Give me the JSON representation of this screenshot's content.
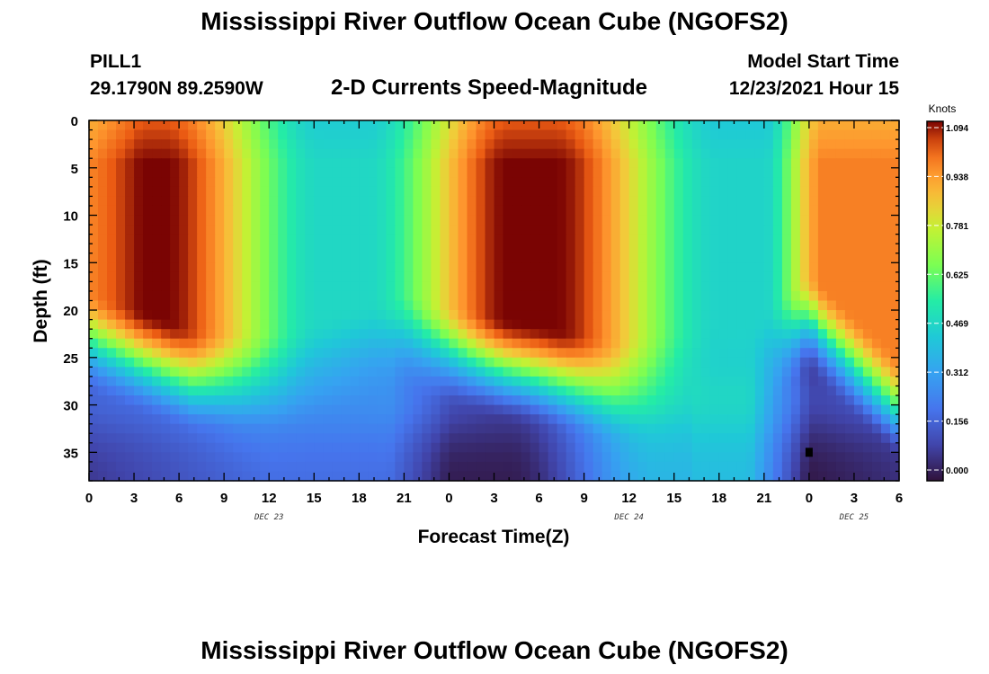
{
  "title": "Mississippi River Outflow Ocean Cube (NGOFS2)",
  "station": {
    "name": "PILL1",
    "coords": "29.1790N  89.2590W"
  },
  "model": {
    "start_label": "Model Start Time",
    "start_value": "12/23/2021 Hour 15"
  },
  "colors": {
    "colormap": "turbo",
    "missing_cell": "#000000"
  },
  "chart_data": {
    "type": "heatmap",
    "title": "2-D Currents Speed-Magnitude",
    "subtitle": "",
    "xlabel": "Forecast Time(Z)",
    "ylabel": "Depth (ft)",
    "x_ticks": [
      "0",
      "3",
      "6",
      "9",
      "12",
      "15",
      "18",
      "21",
      "0",
      "3",
      "6",
      "9",
      "12",
      "15",
      "18",
      "21",
      "0",
      "3",
      "6"
    ],
    "x_hours": [
      0,
      54
    ],
    "date_labels": [
      {
        "text": "DEC 23",
        "hour": 12
      },
      {
        "text": "DEC 24",
        "hour": 36
      },
      {
        "text": "DEC 25",
        "hour": 51
      }
    ],
    "y_ticks": [
      0,
      5,
      10,
      15,
      20,
      25,
      30,
      35
    ],
    "ylim": [
      0,
      38
    ],
    "y_inverted": true,
    "colorbar": {
      "unit": "Knots",
      "ticks": [
        "1.094",
        "0.938",
        "0.781",
        "0.625",
        "0.469",
        "0.312",
        "0.156",
        "0.000"
      ],
      "min": 0.0,
      "max": 1.094
    },
    "missing_points": [
      {
        "hour": 48,
        "depth": 35
      }
    ],
    "speed_model": {
      "surface_peaks": [
        {
          "hour": 3.5,
          "depth": 5,
          "speed": 1.094
        },
        {
          "hour": 28.5,
          "depth": 5,
          "speed": 1.094
        },
        {
          "hour": 54,
          "depth": 10,
          "speed": 0.97
        }
      ],
      "slack_troughs": [
        {
          "hour": 15.5,
          "speed": 0.5
        },
        {
          "hour": 44,
          "speed": 0.45
        }
      ],
      "bottom_minimum": [
        {
          "hour": 0,
          "depth": 38,
          "speed": 0.05
        },
        {
          "hour": 24,
          "depth": 37,
          "speed": 0.0
        },
        {
          "hour": 48,
          "depth": 35,
          "speed": 0.0
        }
      ]
    }
  }
}
